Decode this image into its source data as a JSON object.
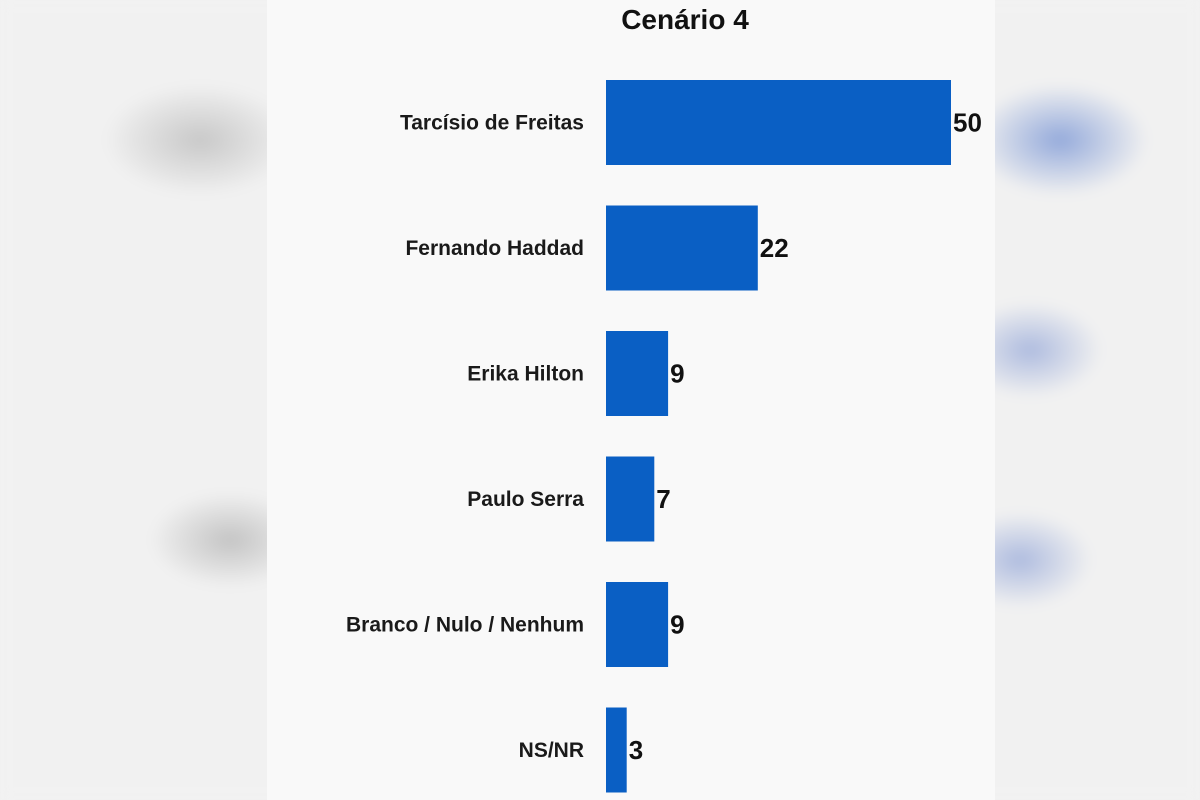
{
  "chart_data": {
    "type": "bar",
    "orientation": "horizontal",
    "title": "Cenário 4",
    "categories": [
      "Tarcísio de Freitas",
      "Fernando Haddad",
      "Erika Hilton",
      "Paulo Serra",
      "Branco / Nulo / Nenhum",
      "NS/NR"
    ],
    "values": [
      50,
      22,
      9,
      7,
      9,
      3
    ],
    "value_labels": [
      "50",
      "22",
      "9",
      "7",
      "9",
      "3"
    ],
    "xlim": [
      0,
      50
    ],
    "grid": false,
    "legend": "none",
    "bar_color": "#0a5fc4"
  }
}
